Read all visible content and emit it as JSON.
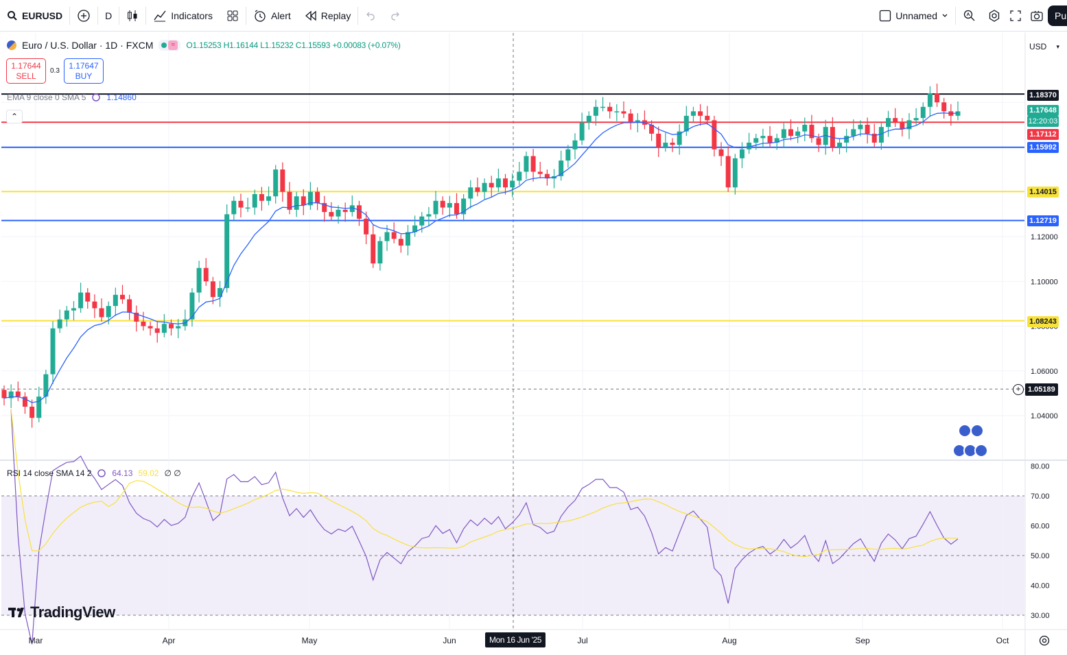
{
  "toolbar": {
    "symbol": "EURUSD",
    "interval": "D",
    "indicators_label": "Indicators",
    "alert_label": "Alert",
    "replay_label": "Replay",
    "layout_name": "Unnamed",
    "publish_label": "Pu"
  },
  "legend": {
    "title": "Euro / U.S. Dollar · 1D · FXCM",
    "ohlc": "O1.15253 H1.16144 L1.15232 C1.15593 +0.00083 (+0.07%)"
  },
  "trade": {
    "sell_price": "1.17644",
    "sell_label": "SELL",
    "spread": "0.3",
    "buy_price": "1.17647",
    "buy_label": "BUY"
  },
  "ema": {
    "label": "EMA 9 close 0 SMA 5",
    "value": "1.14860"
  },
  "rsi": {
    "label": "RSI 14 close SMA 14 2",
    "value": "64.13",
    "sma_value": "59.02",
    "extra": "∅ ∅"
  },
  "logo": "TradingView",
  "currency": "USD",
  "price_axis": {
    "ticks": [
      "1.12000",
      "1.10000",
      "1.08000",
      "1.06000",
      "1.04000"
    ],
    "labels": [
      {
        "text": "1.18370",
        "bg": "#131722",
        "fg": "#ffffff"
      },
      {
        "text": "1.17648",
        "bg": "#22ab94",
        "fg": "#ffffff"
      },
      {
        "text": "12:20:03",
        "bg": "#22ab94",
        "fg": "#ffffff"
      },
      {
        "text": "1.17112",
        "bg": "#f23645",
        "fg": "#ffffff"
      },
      {
        "text": "1.15992",
        "bg": "#2962ff",
        "fg": "#ffffff"
      },
      {
        "text": "1.14015",
        "bg": "#f7e13b",
        "fg": "#131722"
      },
      {
        "text": "1.12719",
        "bg": "#2962ff",
        "fg": "#ffffff"
      },
      {
        "text": "1.08243",
        "bg": "#f7e13b",
        "fg": "#131722"
      }
    ],
    "crosshair": "1.05189"
  },
  "rsi_axis": [
    "80.00",
    "70.00",
    "60.00",
    "50.00",
    "40.00",
    "30.00"
  ],
  "time_axis": [
    "Mar",
    "Apr",
    "May",
    "Jun",
    "Jul",
    "Aug",
    "Sep",
    "Oct"
  ],
  "crosshair_date": "Mon 16 Jun '25",
  "horizontal_levels": [
    {
      "price": 1.1837,
      "color": "#131722"
    },
    {
      "price": 1.17112,
      "color": "#f23645"
    },
    {
      "price": 1.15992,
      "color": "#2962ff"
    },
    {
      "price": 1.14015,
      "color": "#f7e13b"
    },
    {
      "price": 1.12719,
      "color": "#2962ff"
    },
    {
      "price": 1.08243,
      "color": "#f7e13b"
    }
  ],
  "chart_data": {
    "type": "candlestick",
    "y_range": [
      1.03,
      1.19
    ],
    "ema_color": "#2962ff",
    "up_color": "#22ab94",
    "down_color": "#f23645",
    "closes": [
      1.0478,
      1.0508,
      1.0485,
      1.044,
      1.039,
      1.0485,
      1.0585,
      1.079,
      1.083,
      1.087,
      1.088,
      1.095,
      1.091,
      1.088,
      1.084,
      1.089,
      1.094,
      1.092,
      1.086,
      1.082,
      1.08,
      1.079,
      1.077,
      1.081,
      1.079,
      1.08,
      1.083,
      1.095,
      1.106,
      1.1,
      1.093,
      1.097,
      1.13,
      1.136,
      1.133,
      1.133,
      1.139,
      1.136,
      1.138,
      1.15,
      1.14,
      1.132,
      1.138,
      1.134,
      1.14,
      1.135,
      1.131,
      1.129,
      1.132,
      1.131,
      1.134,
      1.128,
      1.121,
      1.108,
      1.118,
      1.122,
      1.119,
      1.116,
      1.122,
      1.125,
      1.129,
      1.13,
      1.136,
      1.133,
      1.135,
      1.13,
      1.137,
      1.142,
      1.14,
      1.144,
      1.142,
      1.146,
      1.142,
      1.145,
      1.149,
      1.156,
      1.149,
      1.148,
      1.146,
      1.147,
      1.154,
      1.159,
      1.163,
      1.171,
      1.174,
      1.178,
      1.178,
      1.176,
      1.176,
      1.175,
      1.171,
      1.172,
      1.17,
      1.166,
      1.16,
      1.162,
      1.161,
      1.167,
      1.174,
      1.176,
      1.174,
      1.172,
      1.159,
      1.156,
      1.142,
      1.155,
      1.159,
      1.162,
      1.164,
      1.165,
      1.162,
      1.164,
      1.168,
      1.165,
      1.167,
      1.17,
      1.164,
      1.161,
      1.169,
      1.16,
      1.162,
      1.165,
      1.168,
      1.17,
      1.166,
      1.162,
      1.169,
      1.173,
      1.171,
      1.168,
      1.172,
      1.173,
      1.178,
      1.184,
      1.18,
      1.176,
      1.174,
      1.176
    ]
  }
}
